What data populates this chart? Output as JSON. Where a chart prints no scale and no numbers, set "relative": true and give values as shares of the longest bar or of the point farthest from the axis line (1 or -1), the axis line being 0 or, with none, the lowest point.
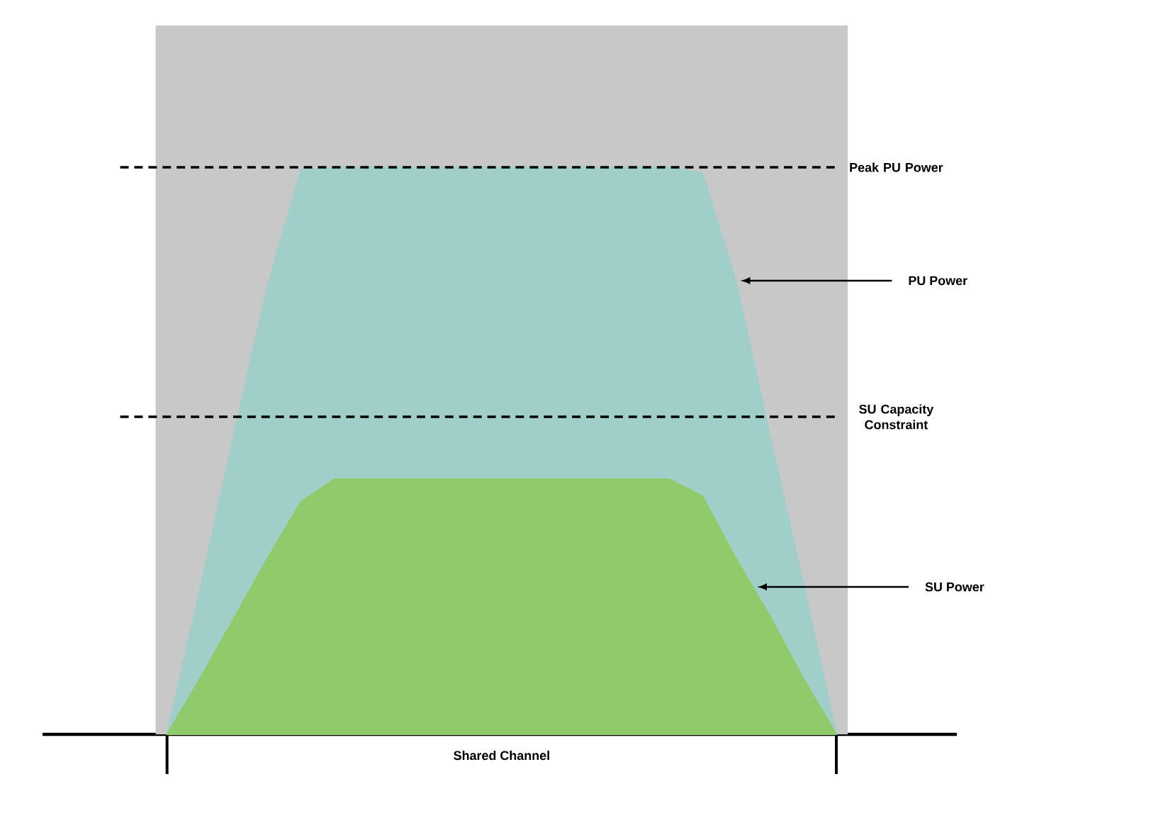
{
  "chart_data": {
    "type": "area",
    "relative": true,
    "xlabel": "Shared Channel",
    "categories": [
      null,
      null,
      null,
      null,
      null,
      null,
      null,
      null,
      null,
      null,
      null,
      null,
      null,
      null,
      null,
      null,
      null,
      null,
      null,
      null,
      null
    ],
    "series": [
      {
        "name": "PU Power",
        "color": "#9fcfc8",
        "values": [
          0,
          0.26,
          0.53,
          0.79,
          0.995,
          1,
          1,
          1,
          1,
          1,
          1,
          1,
          1,
          1,
          1,
          1,
          0.99,
          0.8,
          0.53,
          0.27,
          0
        ]
      },
      {
        "name": "SU Power",
        "color": "#8fcb6b",
        "values": [
          0,
          0.1,
          0.205,
          0.31,
          0.41,
          0.45,
          0.45,
          0.45,
          0.45,
          0.45,
          0.45,
          0.45,
          0.45,
          0.45,
          0.45,
          0.45,
          0.42,
          0.31,
          0.21,
          0.1,
          0
        ]
      }
    ],
    "ref_lines": [
      {
        "axis": "y",
        "value": 1,
        "label": "Peak PU Power",
        "line_style": "dashed"
      },
      {
        "axis": "y",
        "value": 0.56,
        "label": "SU Capacity Constraint",
        "line_style": "dashed"
      }
    ]
  }
}
